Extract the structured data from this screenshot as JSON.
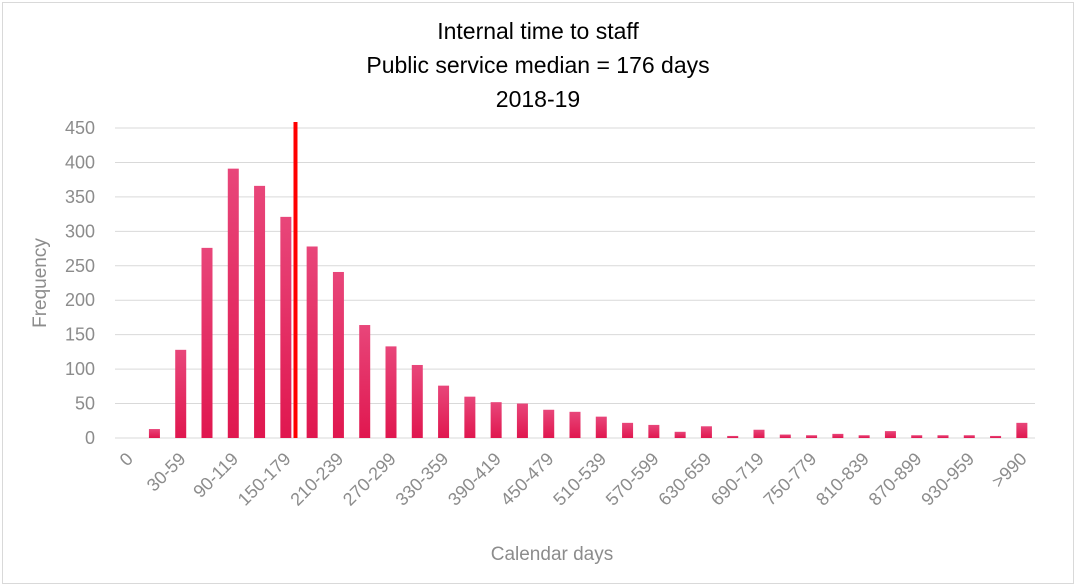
{
  "chart_data": {
    "type": "bar",
    "title_lines": [
      "Internal time to staff",
      "Public service median = 176 days",
      "2018-19"
    ],
    "xlabel": "Calendar days",
    "ylabel": "Frequency",
    "ylim": [
      0,
      450
    ],
    "yticks": [
      0,
      50,
      100,
      150,
      200,
      250,
      300,
      350,
      400,
      450
    ],
    "grid": true,
    "legend": "none",
    "bar_color": "#e0174f",
    "median_line": {
      "value": 176,
      "color": "#ff0000"
    },
    "categories": [
      "0",
      "0-29",
      "30-59",
      "60-89",
      "90-119",
      "120-149",
      "150-179",
      "180-209",
      "210-239",
      "240-269",
      "270-299",
      "300-329",
      "330-359",
      "360-389",
      "390-419",
      "420-449",
      "450-479",
      "480-509",
      "510-539",
      "540-569",
      "570-599",
      "600-629",
      "630-659",
      "660-689",
      "690-719",
      "720-749",
      "750-779",
      "780-809",
      "810-839",
      "840-869",
      "870-899",
      "900-929",
      "930-959",
      "960-989",
      ">990"
    ],
    "visible_tick_labels": [
      "0",
      "30-59",
      "90-119",
      "150-179",
      "210-239",
      "270-299",
      "330-359",
      "390-419",
      "450-479",
      "510-539",
      "570-599",
      "630-659",
      "690-719",
      "750-779",
      "810-839",
      "870-899",
      "930-959",
      ">990"
    ],
    "values": [
      0,
      13,
      128,
      276,
      391,
      366,
      321,
      278,
      241,
      164,
      133,
      106,
      76,
      60,
      52,
      50,
      41,
      38,
      31,
      22,
      19,
      9,
      17,
      3,
      12,
      5,
      4,
      6,
      4,
      10,
      4,
      4,
      4,
      3,
      22
    ]
  }
}
